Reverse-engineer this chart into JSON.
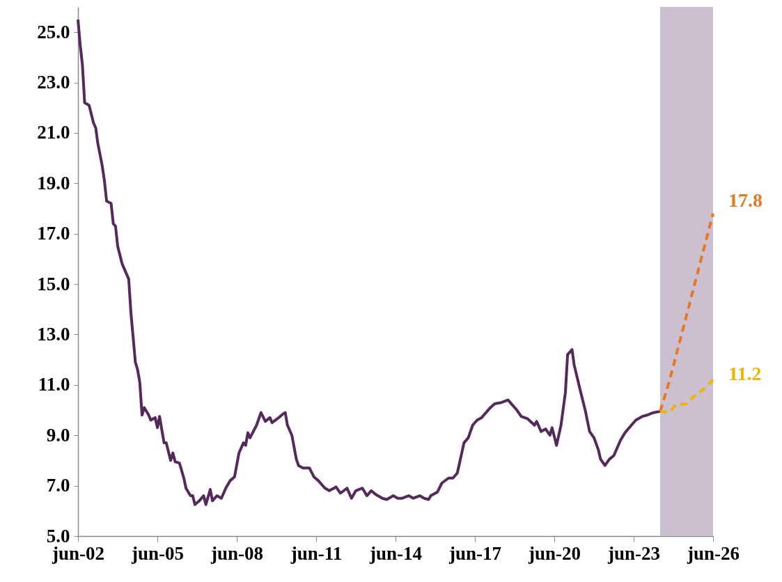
{
  "chart_data": {
    "type": "line",
    "xlim": [
      "2002-06",
      "2026-06"
    ],
    "ylim": [
      5,
      26
    ],
    "xticks": [
      {
        "value": "2002-06",
        "label": "jun-02"
      },
      {
        "value": "2005-06",
        "label": "jun-05"
      },
      {
        "value": "2008-06",
        "label": "jun-08"
      },
      {
        "value": "2011-06",
        "label": "jun-11"
      },
      {
        "value": "2014-06",
        "label": "jun-14"
      },
      {
        "value": "2017-06",
        "label": "jun-17"
      },
      {
        "value": "2020-06",
        "label": "jun-20"
      },
      {
        "value": "2023-06",
        "label": "jun-23"
      },
      {
        "value": "2026-06",
        "label": "jun-26"
      }
    ],
    "yticks": [
      {
        "value": 5,
        "label": "5.0"
      },
      {
        "value": 7,
        "label": "7.0"
      },
      {
        "value": 9,
        "label": "9.0"
      },
      {
        "value": 11,
        "label": "11.0"
      },
      {
        "value": 13,
        "label": "13.0"
      },
      {
        "value": 15,
        "label": "15.0"
      },
      {
        "value": 17,
        "label": "17.0"
      },
      {
        "value": 19,
        "label": "19.0"
      },
      {
        "value": 21,
        "label": "21.0"
      },
      {
        "value": 23,
        "label": "23.0"
      },
      {
        "value": 25,
        "label": "25.0"
      }
    ],
    "grid": false,
    "bands": [
      {
        "axis": "x",
        "from": "2024-06",
        "to": "2026-06",
        "color": "#cbbfd0"
      }
    ],
    "series": [
      {
        "color": "#542a5a",
        "line_style": "solid",
        "x": [
          "2002-06",
          "2002-07",
          "2002-08",
          "2002-09",
          "2002-11",
          "2003-01",
          "2003-02",
          "2003-03",
          "2003-05",
          "2003-06",
          "2003-07",
          "2003-09",
          "2003-10",
          "2003-11",
          "2003-12",
          "2004-02",
          "2004-04",
          "2004-05",
          "2004-06",
          "2004-08",
          "2004-09",
          "2004-10",
          "2004-11",
          "2004-12",
          "2005-02",
          "2005-03",
          "2005-05",
          "2005-06",
          "2005-07",
          "2005-09",
          "2005-10",
          "2005-12",
          "2006-01",
          "2006-02",
          "2006-04",
          "2006-06",
          "2006-07",
          "2006-09",
          "2006-10",
          "2006-11",
          "2007-01",
          "2007-03",
          "2007-04",
          "2007-06",
          "2007-07",
          "2007-09",
          "2007-11",
          "2008-01",
          "2008-03",
          "2008-05",
          "2008-07",
          "2008-09",
          "2008-10",
          "2008-11",
          "2008-12",
          "2009-03",
          "2009-05",
          "2009-07",
          "2009-09",
          "2009-10",
          "2010-01",
          "2010-03",
          "2010-04",
          "2010-05",
          "2010-07",
          "2010-09",
          "2010-10",
          "2010-12",
          "2011-03",
          "2011-05",
          "2011-07",
          "2011-10",
          "2011-12",
          "2012-02",
          "2012-03",
          "2012-05",
          "2012-08",
          "2012-10",
          "2012-12",
          "2013-03",
          "2013-05",
          "2013-07",
          "2013-09",
          "2013-12",
          "2014-02",
          "2014-05",
          "2014-07",
          "2014-09",
          "2014-12",
          "2015-02",
          "2015-05",
          "2015-07",
          "2015-09",
          "2015-10",
          "2016-01",
          "2016-03",
          "2016-06",
          "2016-08",
          "2016-10",
          "2016-11",
          "2017-01",
          "2017-03",
          "2017-05",
          "2017-07",
          "2017-09",
          "2017-11",
          "2018-01",
          "2018-03",
          "2018-06",
          "2018-09",
          "2018-11",
          "2019-01",
          "2019-03",
          "2019-06",
          "2019-09",
          "2019-10",
          "2019-12",
          "2020-02",
          "2020-04",
          "2020-05",
          "2020-07",
          "2020-09",
          "2020-11",
          "2020-12",
          "2021-02",
          "2021-03",
          "2021-06",
          "2021-08",
          "2021-10",
          "2021-12",
          "2022-02",
          "2022-03",
          "2022-05",
          "2022-07",
          "2022-09",
          "2022-12",
          "2023-02",
          "2023-05",
          "2023-07",
          "2023-10",
          "2023-12",
          "2024-03",
          "2024-06"
        ],
        "values": [
          25.5,
          24.5,
          23.7,
          22.2,
          22.1,
          21.4,
          21.2,
          20.6,
          19.7,
          19.1,
          18.3,
          18.2,
          17.4,
          17.3,
          16.5,
          15.8,
          15.4,
          15.2,
          13.85,
          11.9,
          11.6,
          11.1,
          9.8,
          10.1,
          9.8,
          9.6,
          9.7,
          9.3,
          9.75,
          8.7,
          8.7,
          8.0,
          8.3,
          7.95,
          7.9,
          7.3,
          6.9,
          6.6,
          6.6,
          6.25,
          6.4,
          6.6,
          6.25,
          6.85,
          6.4,
          6.6,
          6.5,
          6.9,
          7.2,
          7.35,
          8.3,
          8.7,
          8.6,
          9.1,
          8.9,
          9.4,
          9.9,
          9.55,
          9.7,
          9.5,
          9.7,
          9.85,
          9.9,
          9.4,
          9.0,
          8.05,
          7.8,
          7.7,
          7.7,
          7.35,
          7.2,
          6.9,
          6.8,
          6.9,
          6.95,
          6.7,
          6.9,
          6.5,
          6.8,
          6.9,
          6.6,
          6.8,
          6.65,
          6.5,
          6.45,
          6.6,
          6.5,
          6.5,
          6.6,
          6.5,
          6.6,
          6.5,
          6.45,
          6.6,
          6.75,
          7.1,
          7.3,
          7.3,
          7.5,
          7.9,
          8.7,
          8.9,
          9.4,
          9.6,
          9.7,
          9.9,
          10.1,
          10.25,
          10.3,
          10.4,
          10.2,
          10.0,
          9.75,
          9.65,
          9.4,
          9.55,
          9.15,
          9.25,
          9.0,
          9.3,
          8.6,
          9.4,
          10.7,
          12.2,
          12.4,
          11.8,
          10.7,
          10.0,
          9.15,
          8.9,
          8.4,
          8.05,
          7.8,
          8.05,
          8.2,
          8.8,
          9.1,
          9.4,
          9.6,
          9.75,
          9.8,
          9.9,
          9.95
        ]
      },
      {
        "color": "#e87722",
        "line_style": "dashed",
        "x": [
          "2024-06",
          "2024-10",
          "2025-03",
          "2025-07",
          "2025-12",
          "2026-06"
        ],
        "values": [
          9.95,
          11.1,
          12.75,
          14.1,
          15.8,
          17.8
        ]
      },
      {
        "color": "#f0b400",
        "line_style": "dashed",
        "x": [
          "2024-06",
          "2024-10",
          "2025-01",
          "2025-06",
          "2025-10",
          "2026-02",
          "2026-06"
        ],
        "values": [
          9.95,
          9.9,
          10.2,
          10.25,
          10.6,
          10.85,
          11.2
        ]
      }
    ],
    "annotations": [
      {
        "text": "17.8",
        "x": "2026-06",
        "y": 17.8
      },
      {
        "text": "11.2",
        "x": "2026-06",
        "y": 11.2
      }
    ]
  }
}
